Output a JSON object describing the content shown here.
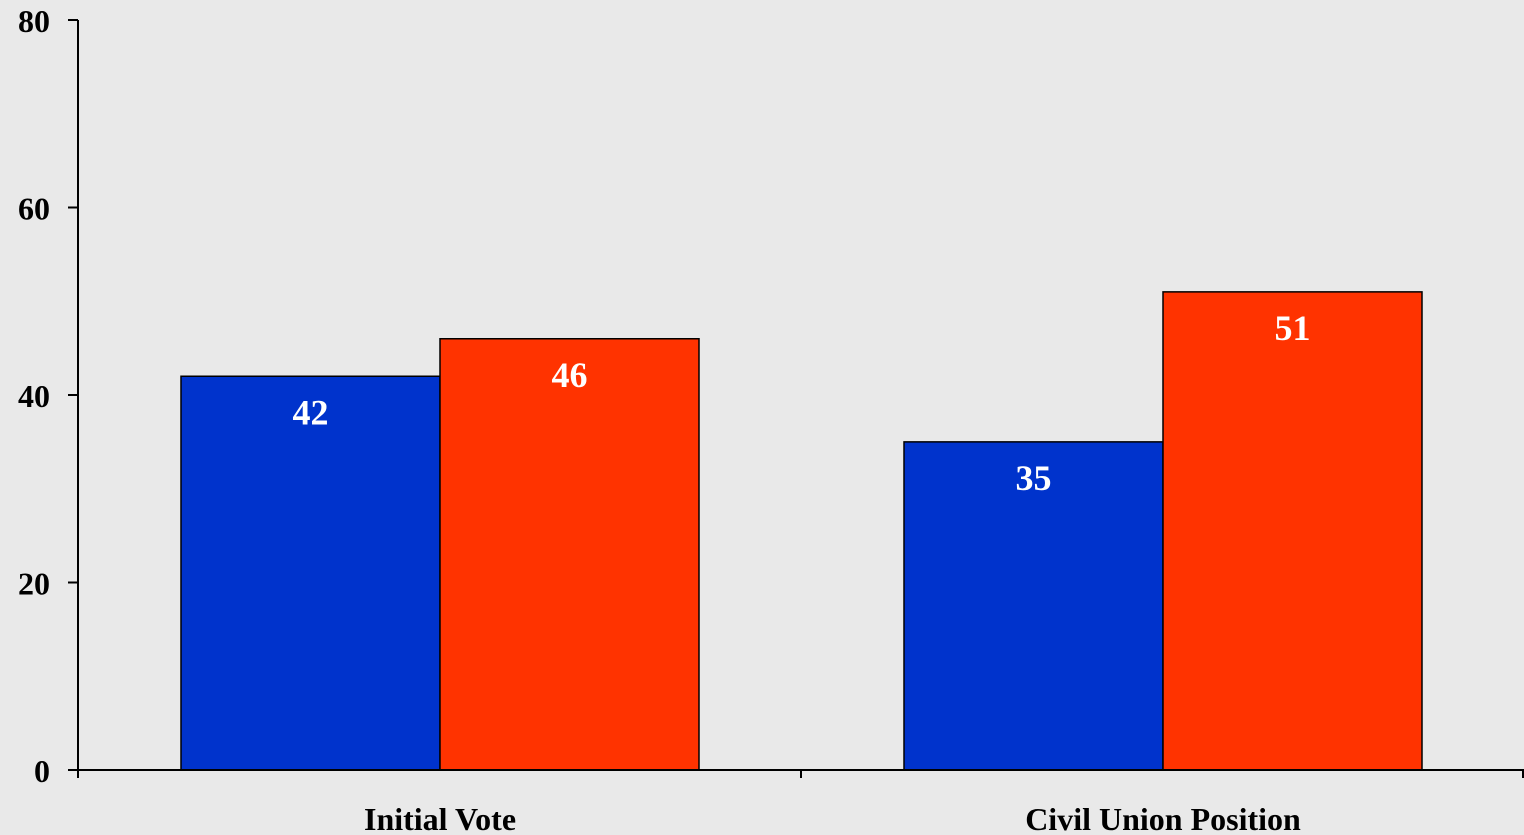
{
  "chart_data": {
    "type": "bar",
    "categories": [
      "Initial Vote",
      "Civil Union Position"
    ],
    "series": [
      {
        "color": "#0033cc",
        "values": [
          42,
          35
        ]
      },
      {
        "color": "#ff3300",
        "values": [
          46,
          51
        ]
      }
    ],
    "data_labels": [
      [
        "42",
        "35"
      ],
      [
        "46",
        "51"
      ]
    ],
    "y_ticks": [
      "0",
      "20",
      "40",
      "60",
      "80"
    ],
    "ylim": [
      0,
      80
    ],
    "grid": false,
    "legend": "none",
    "title": "",
    "xlabel": "",
    "ylabel": "",
    "background_color": "#e9e9e9"
  }
}
